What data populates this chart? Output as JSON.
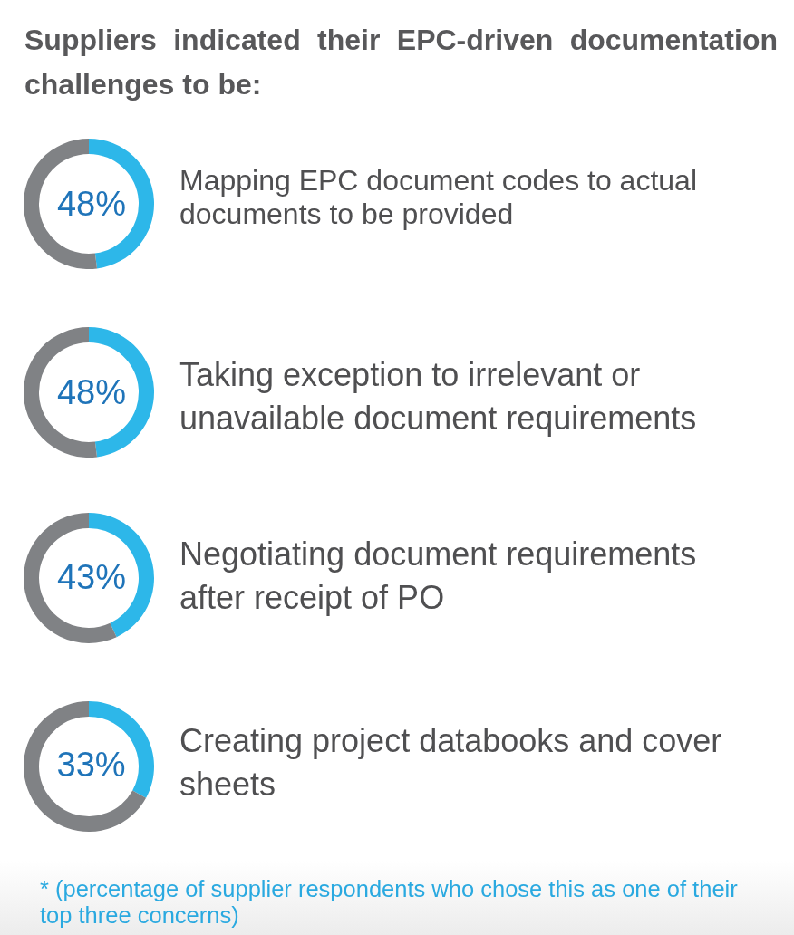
{
  "chart_data": [
    {
      "type": "other",
      "title": "Suppliers indicated their EPC-driven documentation challenges to be:"
    },
    {
      "type": "donut",
      "categories": [
        "Mapping EPC document codes to actual documents to be provided",
        null
      ],
      "values": [
        48,
        52
      ],
      "colors": [
        "#2db7e9",
        "#808285"
      ],
      "value_labels": [
        "48%",
        null
      ]
    },
    {
      "type": "donut",
      "categories": [
        "Taking exception to irrelevant or unavailable document requirements",
        null
      ],
      "values": [
        48,
        52
      ],
      "colors": [
        "#2db7e9",
        "#808285"
      ],
      "value_labels": [
        "48%",
        null
      ]
    },
    {
      "type": "donut",
      "categories": [
        "Negotiating document requirements after receipt of PO",
        null
      ],
      "values": [
        43,
        57
      ],
      "colors": [
        "#2db7e9",
        "#808285"
      ],
      "value_labels": [
        "43%",
        null
      ]
    },
    {
      "type": "donut",
      "categories": [
        "Creating project databooks and cover sheets",
        null
      ],
      "values": [
        33,
        67
      ],
      "colors": [
        "#2db7e9",
        "#808285"
      ],
      "value_labels": [
        "33%",
        null
      ]
    },
    {
      "type": "other",
      "annotations": [
        "* (percentage of supplier respondents who chose this as one of their top three concerns)"
      ]
    }
  ]
}
